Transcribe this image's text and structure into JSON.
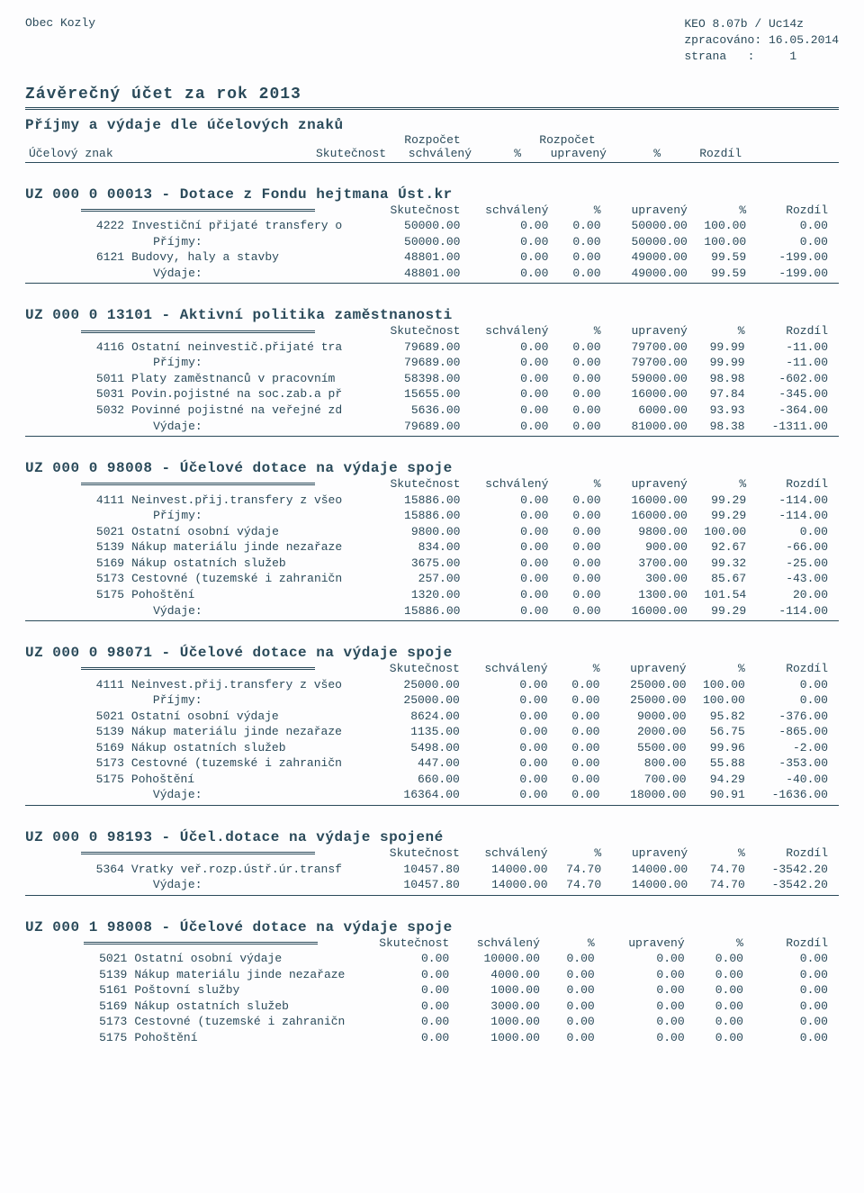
{
  "header": {
    "org": "Obec Kozly",
    "app": "KEO 8.07b / Uc14z",
    "processed_label": "zpracováno:",
    "processed_date": "16.05.2014",
    "page_label": "strana",
    "page_sep": ":",
    "page_num": "1"
  },
  "title": "Závěrečný účet za rok 2013",
  "main_section": {
    "heading": "Příjmy a výdaje dle účelových znaků",
    "row1_label": "Účelový znak",
    "col_skut": "Skutečnost",
    "col_rozp_top": "Rozpočet",
    "col_schv": "schválený",
    "col_pct": "%",
    "col_rozp_top2": "Rozpočet",
    "col_upr": "upravený",
    "col_rozd": "Rozdíl"
  },
  "subheaders": {
    "skut": "Skutečnost",
    "schv": "schválený",
    "pct": "%",
    "upr": "upravený",
    "rozd": "Rozdíl"
  },
  "groups": [
    {
      "title": "UZ 000 0 00013 - Dotace z Fondu hejtmana Úst.kr",
      "rows": [
        {
          "code": "4222",
          "label": "Investiční přijaté transfery o",
          "skut": "50000.00",
          "schv": "0.00",
          "p1": "0.00",
          "upr": "50000.00",
          "p2": "100.00",
          "rozd": "0.00"
        },
        {
          "code": "",
          "label": "Příjmy:",
          "skut": "50000.00",
          "schv": "0.00",
          "p1": "0.00",
          "upr": "50000.00",
          "p2": "100.00",
          "rozd": "0.00",
          "indent": true
        },
        {
          "code": "6121",
          "label": "Budovy, haly a stavby",
          "skut": "48801.00",
          "schv": "0.00",
          "p1": "0.00",
          "upr": "49000.00",
          "p2": "99.59",
          "rozd": "-199.00"
        },
        {
          "code": "",
          "label": "Výdaje:",
          "skut": "48801.00",
          "schv": "0.00",
          "p1": "0.00",
          "upr": "49000.00",
          "p2": "99.59",
          "rozd": "-199.00",
          "indent": true
        }
      ]
    },
    {
      "title": "UZ 000 0 13101 - Aktivní politika zaměstnanosti",
      "rows": [
        {
          "code": "4116",
          "label": "Ostatní neinvestič.přijaté tra",
          "skut": "79689.00",
          "schv": "0.00",
          "p1": "0.00",
          "upr": "79700.00",
          "p2": "99.99",
          "rozd": "-11.00"
        },
        {
          "code": "",
          "label": "Příjmy:",
          "skut": "79689.00",
          "schv": "0.00",
          "p1": "0.00",
          "upr": "79700.00",
          "p2": "99.99",
          "rozd": "-11.00",
          "indent": true
        },
        {
          "code": "5011",
          "label": "Platy zaměstnanců v pracovním",
          "skut": "58398.00",
          "schv": "0.00",
          "p1": "0.00",
          "upr": "59000.00",
          "p2": "98.98",
          "rozd": "-602.00"
        },
        {
          "code": "5031",
          "label": "Povin.pojistné na soc.zab.a př",
          "skut": "15655.00",
          "schv": "0.00",
          "p1": "0.00",
          "upr": "16000.00",
          "p2": "97.84",
          "rozd": "-345.00"
        },
        {
          "code": "5032",
          "label": "Povinné pojistné na veřejné zd",
          "skut": "5636.00",
          "schv": "0.00",
          "p1": "0.00",
          "upr": "6000.00",
          "p2": "93.93",
          "rozd": "-364.00"
        },
        {
          "code": "",
          "label": "Výdaje:",
          "skut": "79689.00",
          "schv": "0.00",
          "p1": "0.00",
          "upr": "81000.00",
          "p2": "98.38",
          "rozd": "-1311.00",
          "indent": true
        }
      ]
    },
    {
      "title": "UZ 000 0 98008 - Účelové dotace na výdaje spoje",
      "rows": [
        {
          "code": "4111",
          "label": "Neinvest.přij.transfery z všeo",
          "skut": "15886.00",
          "schv": "0.00",
          "p1": "0.00",
          "upr": "16000.00",
          "p2": "99.29",
          "rozd": "-114.00"
        },
        {
          "code": "",
          "label": "Příjmy:",
          "skut": "15886.00",
          "schv": "0.00",
          "p1": "0.00",
          "upr": "16000.00",
          "p2": "99.29",
          "rozd": "-114.00",
          "indent": true
        },
        {
          "code": "5021",
          "label": "Ostatní osobní výdaje",
          "skut": "9800.00",
          "schv": "0.00",
          "p1": "0.00",
          "upr": "9800.00",
          "p2": "100.00",
          "rozd": "0.00"
        },
        {
          "code": "5139",
          "label": "Nákup materiálu jinde nezařaze",
          "skut": "834.00",
          "schv": "0.00",
          "p1": "0.00",
          "upr": "900.00",
          "p2": "92.67",
          "rozd": "-66.00"
        },
        {
          "code": "5169",
          "label": "Nákup ostatních služeb",
          "skut": "3675.00",
          "schv": "0.00",
          "p1": "0.00",
          "upr": "3700.00",
          "p2": "99.32",
          "rozd": "-25.00"
        },
        {
          "code": "5173",
          "label": "Cestovné (tuzemské i zahraničn",
          "skut": "257.00",
          "schv": "0.00",
          "p1": "0.00",
          "upr": "300.00",
          "p2": "85.67",
          "rozd": "-43.00"
        },
        {
          "code": "5175",
          "label": "Pohoštění",
          "skut": "1320.00",
          "schv": "0.00",
          "p1": "0.00",
          "upr": "1300.00",
          "p2": "101.54",
          "rozd": "20.00"
        },
        {
          "code": "",
          "label": "Výdaje:",
          "skut": "15886.00",
          "schv": "0.00",
          "p1": "0.00",
          "upr": "16000.00",
          "p2": "99.29",
          "rozd": "-114.00",
          "indent": true
        }
      ]
    },
    {
      "title": "UZ 000 0 98071 - Účelové dotace na výdaje spoje",
      "rows": [
        {
          "code": "4111",
          "label": "Neinvest.přij.transfery z všeo",
          "skut": "25000.00",
          "schv": "0.00",
          "p1": "0.00",
          "upr": "25000.00",
          "p2": "100.00",
          "rozd": "0.00"
        },
        {
          "code": "",
          "label": "Příjmy:",
          "skut": "25000.00",
          "schv": "0.00",
          "p1": "0.00",
          "upr": "25000.00",
          "p2": "100.00",
          "rozd": "0.00",
          "indent": true
        },
        {
          "code": "5021",
          "label": "Ostatní osobní výdaje",
          "skut": "8624.00",
          "schv": "0.00",
          "p1": "0.00",
          "upr": "9000.00",
          "p2": "95.82",
          "rozd": "-376.00"
        },
        {
          "code": "5139",
          "label": "Nákup materiálu jinde nezařaze",
          "skut": "1135.00",
          "schv": "0.00",
          "p1": "0.00",
          "upr": "2000.00",
          "p2": "56.75",
          "rozd": "-865.00"
        },
        {
          "code": "5169",
          "label": "Nákup ostatních služeb",
          "skut": "5498.00",
          "schv": "0.00",
          "p1": "0.00",
          "upr": "5500.00",
          "p2": "99.96",
          "rozd": "-2.00"
        },
        {
          "code": "5173",
          "label": "Cestovné (tuzemské i zahraničn",
          "skut": "447.00",
          "schv": "0.00",
          "p1": "0.00",
          "upr": "800.00",
          "p2": "55.88",
          "rozd": "-353.00"
        },
        {
          "code": "5175",
          "label": "Pohoštění",
          "skut": "660.00",
          "schv": "0.00",
          "p1": "0.00",
          "upr": "700.00",
          "p2": "94.29",
          "rozd": "-40.00"
        },
        {
          "code": "",
          "label": "Výdaje:",
          "skut": "16364.00",
          "schv": "0.00",
          "p1": "0.00",
          "upr": "18000.00",
          "p2": "90.91",
          "rozd": "-1636.00",
          "indent": true
        }
      ]
    },
    {
      "title": "UZ 000 0 98193 - Účel.dotace na výdaje spojené",
      "rows": [
        {
          "code": "5364",
          "label": "Vratky veř.rozp.ústř.úr.transf",
          "skut": "10457.80",
          "schv": "14000.00",
          "p1": "74.70",
          "upr": "14000.00",
          "p2": "74.70",
          "rozd": "-3542.20"
        },
        {
          "code": "",
          "label": "Výdaje:",
          "skut": "10457.80",
          "schv": "14000.00",
          "p1": "74.70",
          "upr": "14000.00",
          "p2": "74.70",
          "rozd": "-3542.20",
          "indent": true
        }
      ]
    },
    {
      "title": "UZ 000 1 98008 - Účelové dotace na výdaje spoje",
      "no_bottom_rule": true,
      "rows": [
        {
          "code": "5021",
          "label": "Ostatní osobní výdaje",
          "skut": "0.00",
          "schv": "10000.00",
          "p1": "0.00",
          "upr": "0.00",
          "p2": "0.00",
          "rozd": "0.00"
        },
        {
          "code": "5139",
          "label": "Nákup materiálu jinde nezařaze",
          "skut": "0.00",
          "schv": "4000.00",
          "p1": "0.00",
          "upr": "0.00",
          "p2": "0.00",
          "rozd": "0.00"
        },
        {
          "code": "5161",
          "label": "Poštovní služby",
          "skut": "0.00",
          "schv": "1000.00",
          "p1": "0.00",
          "upr": "0.00",
          "p2": "0.00",
          "rozd": "0.00"
        },
        {
          "code": "5169",
          "label": "Nákup ostatních služeb",
          "skut": "0.00",
          "schv": "3000.00",
          "p1": "0.00",
          "upr": "0.00",
          "p2": "0.00",
          "rozd": "0.00"
        },
        {
          "code": "5173",
          "label": "Cestovné (tuzemské i zahraničn",
          "skut": "0.00",
          "schv": "1000.00",
          "p1": "0.00",
          "upr": "0.00",
          "p2": "0.00",
          "rozd": "0.00"
        },
        {
          "code": "5175",
          "label": "Pohoštění",
          "skut": "0.00",
          "schv": "1000.00",
          "p1": "0.00",
          "upr": "0.00",
          "p2": "0.00",
          "rozd": "0.00"
        }
      ]
    }
  ]
}
